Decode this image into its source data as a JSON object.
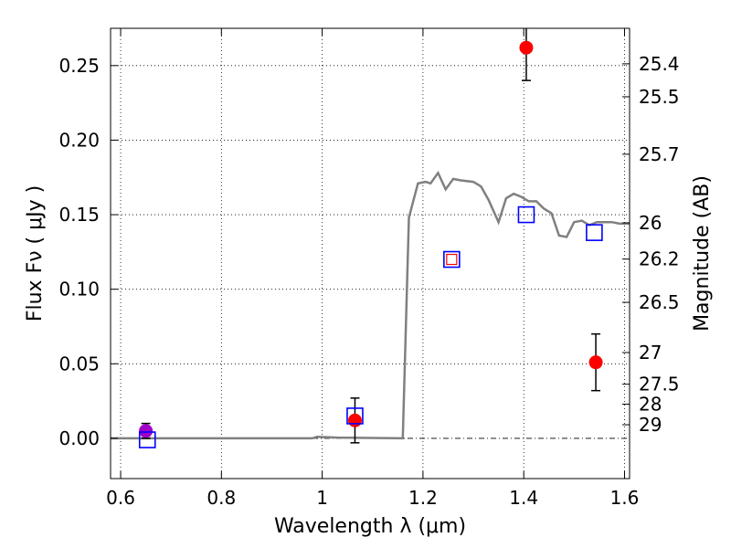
{
  "chart_data": {
    "type": "scatter",
    "xlabel": "Wavelength  λ (μm)",
    "ylabel": "Flux  Fν ( μJy )",
    "ylabel_right": "Magnitude (AB)",
    "xlim": [
      0.58,
      1.61
    ],
    "ylim": [
      -0.027,
      0.275
    ],
    "grid": true,
    "x_ticks": [
      0.6,
      0.8,
      1.0,
      1.2,
      1.4,
      1.6
    ],
    "x_tick_labels": [
      "0.6",
      "0.8",
      "1",
      "1.2",
      "1.4",
      "1.6"
    ],
    "y_ticks": [
      0.0,
      0.05,
      0.1,
      0.15,
      0.2,
      0.25
    ],
    "y_tick_labels": [
      "0.00",
      "0.05",
      "0.10",
      "0.15",
      "0.20",
      "0.25"
    ],
    "mag_ticks": [
      25.4,
      25.5,
      25.7,
      26,
      26.2,
      26.5,
      27,
      27.5,
      28,
      29
    ],
    "mag_tick_labels": [
      "25.4",
      "25.5",
      "25.7",
      "26",
      "26.2",
      "26.5",
      "27",
      "27.5",
      "28",
      "29"
    ],
    "series": [
      {
        "type": "line",
        "color": "#808080",
        "x": [
          0.58,
          0.98,
          0.99,
          1.03,
          1.16,
          1.172,
          1.19,
          1.205,
          1.215,
          1.23,
          1.245,
          1.26,
          1.275,
          1.3,
          1.315,
          1.33,
          1.35,
          1.365,
          1.38,
          1.395,
          1.41,
          1.425,
          1.44,
          1.455,
          1.47,
          1.485,
          1.5,
          1.515,
          1.53,
          1.545,
          1.56,
          1.575,
          1.59,
          1.61
        ],
        "y": [
          0.0,
          0.0,
          0.001,
          0.0005,
          0.0,
          0.148,
          0.171,
          0.172,
          0.171,
          0.178,
          0.167,
          0.174,
          0.173,
          0.172,
          0.169,
          0.16,
          0.145,
          0.161,
          0.164,
          0.162,
          0.159,
          0.159,
          0.154,
          0.151,
          0.136,
          0.135,
          0.145,
          0.146,
          0.143,
          0.145,
          0.145,
          0.145,
          0.144,
          0.144
        ]
      },
      {
        "type": "marker",
        "marker": "circle",
        "color": "#ff0000",
        "x": [
          0.65,
          1.065,
          1.405,
          1.543
        ],
        "y": [
          0.005,
          0.012,
          0.262,
          0.051
        ],
        "yerr": [
          0.005,
          0.015,
          0.022,
          0.019
        ]
      },
      {
        "type": "marker",
        "marker": "open-square",
        "color": "#0000ff",
        "x": [
          0.653,
          1.065,
          1.257,
          1.405,
          1.54
        ],
        "y": [
          -0.001,
          0.015,
          0.12,
          0.15,
          0.138
        ]
      },
      {
        "type": "marker",
        "marker": "open-square-small",
        "color": "#ff0000",
        "x": [
          1.257
        ],
        "y": [
          0.12
        ]
      }
    ]
  }
}
